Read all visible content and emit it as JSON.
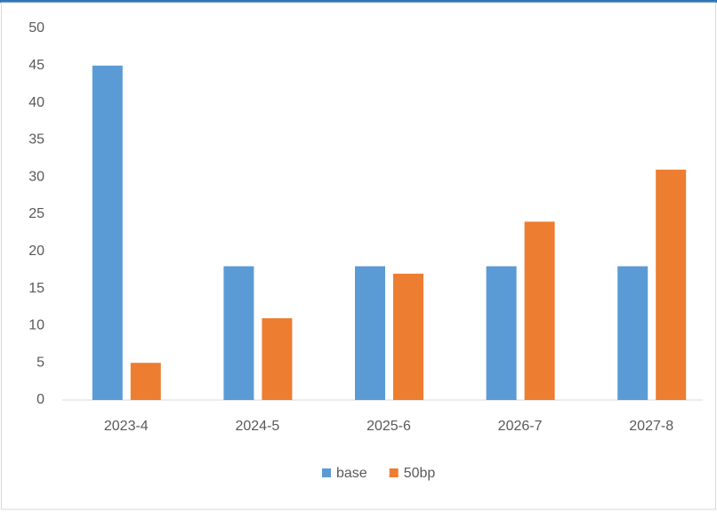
{
  "chart_data": {
    "type": "bar",
    "categories": [
      "2023-4",
      "2024-5",
      "2025-6",
      "2026-7",
      "2027-8"
    ],
    "series": [
      {
        "name": "base",
        "color": "#5b9bd5",
        "values": [
          45,
          18,
          18,
          18,
          18
        ]
      },
      {
        "name": "50bp",
        "color": "#ed7d31",
        "values": [
          5,
          11,
          17,
          24,
          31
        ]
      }
    ],
    "ylim": [
      0,
      50
    ],
    "yticks": [
      0,
      5,
      10,
      15,
      20,
      25,
      30,
      35,
      40,
      45,
      50
    ],
    "grid": false,
    "legend": "bottom"
  }
}
